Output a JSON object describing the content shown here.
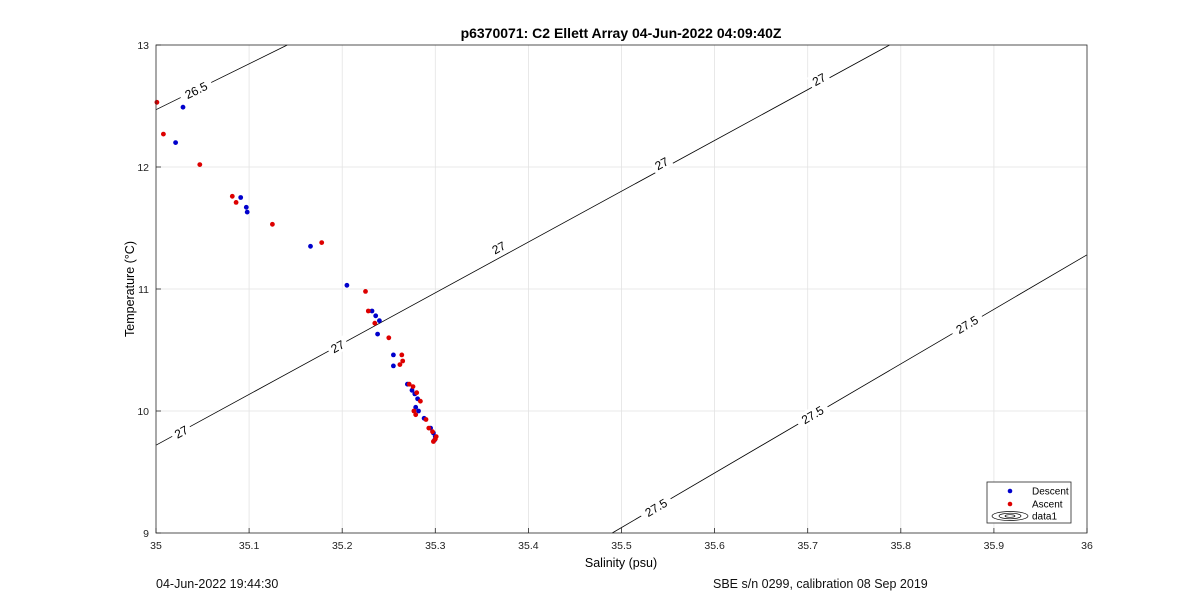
{
  "chart_data": {
    "type": "scatter",
    "title": "p6370071: C2 Ellett Array 04-Jun-2022 04:09:40Z",
    "xlabel": "Salinity (psu)",
    "ylabel": "Temperature (°C)",
    "xlim": [
      35,
      36
    ],
    "ylim": [
      9,
      13
    ],
    "x_ticks": [
      "35",
      "35.1",
      "35.2",
      "35.3",
      "35.4",
      "35.5",
      "35.6",
      "35.7",
      "35.8",
      "35.9",
      "36"
    ],
    "y_ticks": [
      "9",
      "10",
      "11",
      "12",
      "13"
    ],
    "grid": true,
    "legend_position": "bottom-right",
    "series": [
      {
        "name": "Descent",
        "color": "#0000cc",
        "points": [
          [
            35.029,
            12.49
          ],
          [
            35.021,
            12.2
          ],
          [
            35.091,
            11.75
          ],
          [
            35.097,
            11.67
          ],
          [
            35.098,
            11.63
          ],
          [
            35.166,
            11.35
          ],
          [
            35.205,
            11.03
          ],
          [
            35.232,
            10.82
          ],
          [
            35.236,
            10.78
          ],
          [
            35.24,
            10.74
          ],
          [
            35.238,
            10.63
          ],
          [
            35.255,
            10.46
          ],
          [
            35.255,
            10.37
          ],
          [
            35.27,
            10.22
          ],
          [
            35.275,
            10.17
          ],
          [
            35.278,
            10.14
          ],
          [
            35.281,
            10.1
          ],
          [
            35.279,
            10.03
          ],
          [
            35.282,
            10.0
          ],
          [
            35.288,
            9.94
          ],
          [
            35.295,
            9.86
          ],
          [
            35.298,
            9.82
          ],
          [
            35.3,
            9.79
          ],
          [
            35.299,
            9.76
          ]
        ]
      },
      {
        "name": "Ascent",
        "color": "#dd0000",
        "points": [
          [
            35.001,
            12.53
          ],
          [
            35.008,
            12.27
          ],
          [
            35.047,
            12.02
          ],
          [
            35.082,
            11.76
          ],
          [
            35.086,
            11.71
          ],
          [
            35.125,
            11.53
          ],
          [
            35.178,
            11.38
          ],
          [
            35.225,
            10.98
          ],
          [
            35.228,
            10.82
          ],
          [
            35.235,
            10.72
          ],
          [
            35.25,
            10.6
          ],
          [
            35.264,
            10.46
          ],
          [
            35.265,
            10.41
          ],
          [
            35.262,
            10.38
          ],
          [
            35.272,
            10.22
          ],
          [
            35.276,
            10.2
          ],
          [
            35.28,
            10.15
          ],
          [
            35.284,
            10.08
          ],
          [
            35.277,
            10.0
          ],
          [
            35.279,
            9.97
          ],
          [
            35.29,
            9.93
          ],
          [
            35.293,
            9.86
          ],
          [
            35.297,
            9.83
          ],
          [
            35.301,
            9.79
          ],
          [
            35.3,
            9.77
          ],
          [
            35.298,
            9.75
          ]
        ]
      }
    ],
    "contours": [
      {
        "level": "26.5",
        "points": [
          [
            35,
            12.47
          ],
          [
            35.141,
            13
          ]
        ]
      },
      {
        "level": "27",
        "points": [
          [
            35,
            9.72
          ],
          [
            35.788,
            13
          ]
        ]
      },
      {
        "level": "27.5",
        "points": [
          [
            35.49,
            9
          ],
          [
            36,
            11.28
          ]
        ]
      }
    ],
    "contour_labels": [
      {
        "text": "26.5",
        "x": 35.043,
        "y": 12.63
      },
      {
        "text": "27",
        "x": 35.027,
        "y": 9.83
      },
      {
        "text": "27",
        "x": 35.195,
        "y": 10.53
      },
      {
        "text": "27",
        "x": 35.368,
        "y": 11.34
      },
      {
        "text": "27",
        "x": 35.543,
        "y": 12.03
      },
      {
        "text": "27",
        "x": 35.712,
        "y": 12.72
      },
      {
        "text": "27.5",
        "x": 35.537,
        "y": 9.21
      },
      {
        "text": "27.5",
        "x": 35.705,
        "y": 9.97
      },
      {
        "text": "27.5",
        "x": 35.871,
        "y": 10.71
      }
    ],
    "legend_entries": [
      "Descent",
      "Ascent",
      "data1"
    ]
  },
  "footer": {
    "left": "04-Jun-2022 19:44:30",
    "right": "SBE s/n 0299, calibration 08 Sep 2019"
  }
}
